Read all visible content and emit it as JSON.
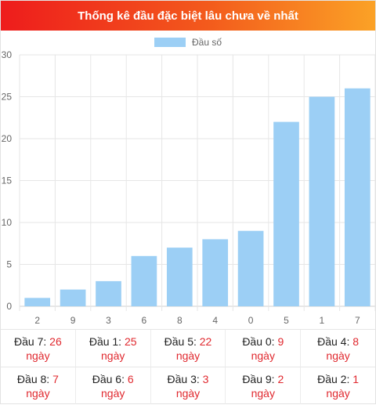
{
  "title": "Thống kê đầu đặc biệt lâu chưa về nhất",
  "colors": {
    "bar": "#9ccff5",
    "accent_red": "#e0282e",
    "grid": "#e6e6e6"
  },
  "chart_data": {
    "type": "bar",
    "categories": [
      "2",
      "9",
      "3",
      "6",
      "8",
      "4",
      "0",
      "5",
      "1",
      "7"
    ],
    "series": [
      {
        "name": "Đầu số",
        "values": [
          1,
          2,
          3,
          6,
          7,
          8,
          9,
          22,
          25,
          26
        ]
      }
    ],
    "ylim": [
      0,
      30
    ],
    "yticks": [
      0,
      5,
      10,
      15,
      20,
      25,
      30
    ],
    "grid": true,
    "legend": "top-center"
  },
  "stats": {
    "rows": [
      [
        {
          "label": "Đầu 7:",
          "value": "26",
          "unit": "ngày"
        },
        {
          "label": "Đầu 1:",
          "value": "25",
          "unit": "ngày"
        },
        {
          "label": "Đầu 5:",
          "value": "22",
          "unit": "ngày"
        },
        {
          "label": "Đầu 0:",
          "value": "9",
          "unit": "ngày"
        },
        {
          "label": "Đầu 4:",
          "value": "8",
          "unit": "ngày"
        }
      ],
      [
        {
          "label": "Đầu 8:",
          "value": "7",
          "unit": "ngày"
        },
        {
          "label": "Đầu 6:",
          "value": "6",
          "unit": "ngày"
        },
        {
          "label": "Đầu 3:",
          "value": "3",
          "unit": "ngày"
        },
        {
          "label": "Đầu 9:",
          "value": "2",
          "unit": "ngày"
        },
        {
          "label": "Đầu 2:",
          "value": "1",
          "unit": "ngày"
        }
      ]
    ]
  }
}
